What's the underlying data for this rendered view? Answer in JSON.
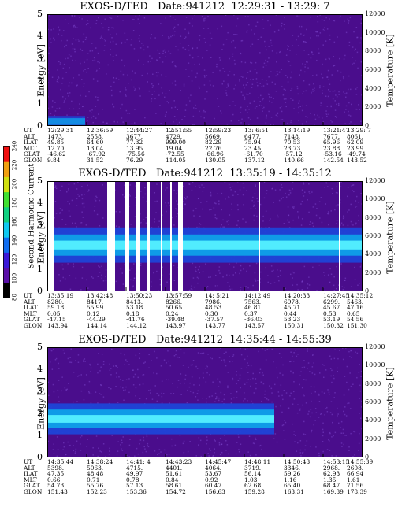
{
  "colors": {
    "background_dark": "#4a0d8c",
    "noise": "#7a44c8",
    "band_outer": "#1e44d8",
    "band_mid": "#0fa0e8",
    "band_core": "#55f0ff",
    "dropout": "#ffffff"
  },
  "colorbar": {
    "label": "Second Harmonic Current",
    "ticks": [
      "80",
      "100",
      "120",
      "140",
      "160",
      "180",
      "200",
      "220",
      "240"
    ],
    "colors": [
      "#000000",
      "#5a0fa8",
      "#3a18d8",
      "#0f6cf0",
      "#0fc8f0",
      "#10d080",
      "#40e030",
      "#d0e010",
      "#f0a010",
      "#f01010"
    ]
  },
  "chart_data": [
    {
      "type": "heatmap",
      "title": "EXOS-D/TED   Date:941212  12:29:31 - 13:29: 7",
      "ylabel": "Energy [eV]",
      "y2label": "Temperature [K]",
      "ylim": [
        0,
        5
      ],
      "y2lim": [
        0,
        12000
      ],
      "yticks": [
        "0",
        "1",
        "2",
        "3",
        "4",
        "5"
      ],
      "y2ticks": [
        "0",
        "2000",
        "4000",
        "6000",
        "8000",
        "10000",
        "12000"
      ],
      "band": {
        "center": 0.2,
        "width": 0.25,
        "intensity": 0.4,
        "fade_after": 0.12
      },
      "dropouts": [],
      "row_labels": [
        "UT",
        "ALT",
        "ILAT",
        "MLT",
        "GLAT",
        "GLON"
      ],
      "columns": [
        [
          "12:29:31",
          "1473.",
          "49.85",
          "12.70",
          "-46.62",
          "9.84"
        ],
        [
          "12:36:59",
          "2558.",
          "64.60",
          "13.04",
          "-67.92",
          "31.52"
        ],
        [
          "12:44:27",
          "3677.",
          "77.32",
          "13.95",
          "-75.56",
          "76.29"
        ],
        [
          "12:51:55",
          "4729.",
          "999.00",
          "19.04",
          "-72.55",
          "114.05"
        ],
        [
          "12:59:23",
          "5669.",
          "82.29",
          "22.76",
          "-66.96",
          "130.05"
        ],
        [
          "13: 6:51",
          "6477.",
          "75.94",
          "23.45",
          "-61.70",
          "137.12"
        ],
        [
          "13:14:19",
          "7148.",
          "70.53",
          "23.73",
          "-57.12",
          "140.66"
        ],
        [
          "13:21:47",
          "7677.",
          "65.96",
          "23.88",
          "-53.16",
          "142.54"
        ],
        [
          "13:29: 7",
          "8061.",
          "62.09",
          "23.99",
          "-49.74",
          "143.52"
        ]
      ]
    },
    {
      "type": "heatmap",
      "title": "EXOS-D/TED   Date:941212  13:35:19 - 14:35:12",
      "ylabel": "Energy [eV]",
      "y2label": "Temperature [K]",
      "ylim": [
        0,
        5
      ],
      "y2lim": [
        0,
        12000
      ],
      "yticks": [
        "0",
        "1",
        "2",
        "3",
        "4",
        "5"
      ],
      "y2ticks": [
        "0",
        "2000",
        "4000",
        "6000",
        "8000",
        "10000",
        "12000"
      ],
      "band": {
        "center": 2.1,
        "width": 0.8,
        "intensity": 1.0,
        "fade_after": 1.0
      },
      "dropouts": [
        [
          0.0,
          0.02
        ],
        [
          0.19,
          0.215
        ],
        [
          0.245,
          0.26
        ],
        [
          0.28,
          0.295
        ],
        [
          0.315,
          0.325
        ],
        [
          0.36,
          0.365
        ],
        [
          0.39,
          0.395
        ],
        [
          0.415,
          0.43
        ],
        [
          0.67,
          0.675
        ],
        [
          0.925,
          0.93
        ]
      ],
      "row_labels": [
        "UT",
        "ALT",
        "ILAT",
        "MLT",
        "GLAT",
        "GLON"
      ],
      "columns": [
        [
          "13:35:19",
          "8280.",
          "59.18",
          "0.05",
          "-47.15",
          "143.94"
        ],
        [
          "13:42:48",
          "8417.",
          "55.99",
          "0.12",
          "-44.29",
          "144.14"
        ],
        [
          "13:50:23",
          "8413.",
          "53.18",
          "0.18",
          "-41.76",
          "144.12"
        ],
        [
          "13:57:59",
          "8266.",
          "50.65",
          "0.24",
          "-39.48",
          "143.97"
        ],
        [
          "14: 5:21",
          "7986.",
          "48.53",
          "0.30",
          "-37.57",
          "143.77"
        ],
        [
          "14:12:49",
          "7563.",
          "46.81",
          "0.37",
          "-36.03",
          "143.57"
        ],
        [
          "14:20:33",
          "6978.",
          "45.71",
          "0.44",
          "53.23",
          "150.31"
        ],
        [
          "14:27:45",
          "6299.",
          "45.67",
          "0.53",
          "53.19",
          "150.32"
        ],
        [
          "14:35:12",
          "5463.",
          "47.16",
          "0.65",
          "54.56",
          "151.30"
        ]
      ]
    },
    {
      "type": "heatmap",
      "title": "EXOS-D/TED   Date:941212  14:35:44 - 14:55:39",
      "ylabel": "Energy [eV]",
      "y2label": "Temperature [K]",
      "ylim": [
        0,
        5
      ],
      "y2lim": [
        0,
        12000
      ],
      "yticks": [
        "0",
        "1",
        "2",
        "3",
        "4",
        "5"
      ],
      "y2ticks": [
        "0",
        "2000",
        "4000",
        "6000",
        "8000",
        "10000",
        "12000"
      ],
      "band": {
        "center": 1.75,
        "width": 0.7,
        "intensity": 1.0,
        "fade_after": 0.72
      },
      "dropouts": [],
      "row_labels": [
        "UT",
        "ALT",
        "ILAT",
        "MLT",
        "GLAT",
        "GLON"
      ],
      "columns": [
        [
          "14:35:44",
          "5398.",
          "47.35",
          "0.66",
          "54.73",
          "151.43"
        ],
        [
          "14:38:24",
          "5063.",
          "48.48",
          "0.71",
          "55.76",
          "152.23"
        ],
        [
          "14:41: 4",
          "4715.",
          "49.97",
          "0.78",
          "57.13",
          "153.36"
        ],
        [
          "14:43:23",
          "4401.",
          "51.61",
          "0.84",
          "58.61",
          "154.72"
        ],
        [
          "14:45:47",
          "4064.",
          "53.67",
          "0.92",
          "60.47",
          "156.63"
        ],
        [
          "14:48:11",
          "3719.",
          "56.14",
          "1.03",
          "62.68",
          "159.28"
        ],
        [
          "14:50:43",
          "3346.",
          "59.26",
          "1.16",
          "65.40",
          "163.31"
        ],
        [
          "14:53:15",
          "2968.",
          "62.93",
          "1.35",
          "68.47",
          "169.39"
        ],
        [
          "14:55:39",
          "2608.",
          "66.94",
          "1.61",
          "71.56",
          "178.39"
        ]
      ]
    }
  ]
}
